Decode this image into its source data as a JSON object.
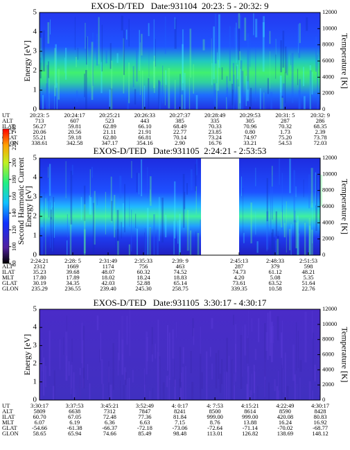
{
  "chart_data": [
    {
      "type": "spectrogram",
      "title": "EXOS-D/TED   Date:931104  20:23: 5 - 20:32: 9",
      "ylabel": "Energy [eV]",
      "y2label": "Temperature [K]",
      "ylim": [
        0,
        5
      ],
      "yticks": [
        0,
        1,
        2,
        3,
        4,
        5
      ],
      "y2lim": [
        0,
        12000
      ],
      "y2ticks": [
        0,
        2000,
        4000,
        6000,
        8000,
        10000,
        12000
      ],
      "row_label": "UT",
      "categories": [
        "20:23: 5",
        "20:24:17",
        "20:25:21",
        "20:26:33",
        "20:27:37",
        "20:28:49",
        "20:29:53",
        "20:31: 5",
        "20:32: 9"
      ],
      "ephemeris": [
        {
          "name": "ALT",
          "values": [
            "713",
            "607",
            "523",
            "443",
            "385",
            "335",
            "305",
            "287",
            "286"
          ]
        },
        {
          "name": "ILAT",
          "values": [
            "56.27",
            "59.81",
            "62.89",
            "66.10",
            "68.49",
            "70.33",
            "70.96",
            "70.32",
            "68.35"
          ]
        },
        {
          "name": "MLT",
          "values": [
            "20.06",
            "20.56",
            "21.11",
            "21.91",
            "22.77",
            "23.85",
            "0.80",
            "1.73",
            "2.39"
          ]
        },
        {
          "name": "GLAT",
          "values": [
            "55.21",
            "59.18",
            "62.80",
            "66.81",
            "70.14",
            "73.24",
            "74.97",
            "75.20",
            "73.78"
          ]
        },
        {
          "name": "GLON",
          "values": [
            "338.61",
            "342.58",
            "347.17",
            "354.16",
            "2.90",
            "16.76",
            "33.21",
            "54.53",
            "72.03"
          ]
        }
      ]
    },
    {
      "type": "spectrogram",
      "title": "EXOS-D/TED   Date:931105  2:24:21 - 2:53:53",
      "ylabel": "Energy [eV]",
      "y2label": "Temperature [K]",
      "ylim": [
        0,
        5
      ],
      "yticks": [
        0,
        1,
        2,
        3,
        4,
        5
      ],
      "y2lim": [
        0,
        12000
      ],
      "y2ticks": [
        0,
        2000,
        4000,
        6000,
        8000,
        10000,
        12000
      ],
      "row_label": "UT",
      "categories": [
        "2:24:21",
        "2:28: 5",
        "2:31:49",
        "2:35:33",
        "2:39: 9",
        "2:45:13",
        "2:48:33",
        "2:51:53"
      ],
      "ephemeris": [
        {
          "name": "ALT",
          "values": [
            "2312",
            "1669",
            "1174",
            "756",
            "463",
            "287",
            "379",
            "598"
          ]
        },
        {
          "name": "ILAT",
          "values": [
            "35.23",
            "39.68",
            "48.07",
            "60.32",
            "74.52",
            "74.73",
            "61.12",
            "48.21"
          ]
        },
        {
          "name": "MLT",
          "values": [
            "17.80",
            "17.89",
            "18.02",
            "18.24",
            "18.83",
            "4.20",
            "5.08",
            "5.35"
          ]
        },
        {
          "name": "GLAT",
          "values": [
            "30.19",
            "34.35",
            "42.03",
            "52.88",
            "65.14",
            "73.61",
            "63.52",
            "51.64"
          ]
        },
        {
          "name": "GLON",
          "values": [
            "235.29",
            "236.55",
            "239.40",
            "245.30",
            "258.75",
            "339.35",
            "10.58",
            "22.76"
          ]
        }
      ]
    },
    {
      "type": "spectrogram",
      "title": "EXOS-D/TED   Date:931105  3:30:17 - 4:30:17",
      "ylabel": "Energy [eV]",
      "y2label": "Temperature [K]",
      "ylim": [
        0,
        5
      ],
      "yticks": [
        0,
        1,
        2,
        3,
        4,
        5
      ],
      "y2lim": [
        0,
        12000
      ],
      "y2ticks": [
        0,
        2000,
        4000,
        6000,
        8000,
        10000,
        12000
      ],
      "row_label": "UT",
      "categories": [
        "3:30:17",
        "3:37:53",
        "3:45:21",
        "3:52:49",
        "4: 0:17",
        "4: 7:53",
        "4:15:21",
        "4:22:49",
        "4:30:17"
      ],
      "ephemeris": [
        {
          "name": "ALT",
          "values": [
            "5809",
            "6638",
            "7312",
            "7847",
            "8241",
            "8500",
            "8614",
            "8590",
            "8428"
          ]
        },
        {
          "name": "ILAT",
          "values": [
            "60.70",
            "67.05",
            "72.48",
            "77.36",
            "81.84",
            "999.00",
            "999.00",
            "420.08",
            "80.83"
          ]
        },
        {
          "name": "MLT",
          "values": [
            "6.07",
            "6.19",
            "6.36",
            "6.63",
            "7.15",
            "8.76",
            "13.88",
            "16.24",
            "16.92"
          ]
        },
        {
          "name": "GLAT",
          "values": [
            "-54.66",
            "-61.38",
            "-66.37",
            "-72.18",
            "-73.06",
            "-72.64",
            "-71.14",
            "-70.02",
            "-68.77"
          ]
        },
        {
          "name": "GLON",
          "values": [
            "58.65",
            "65.94",
            "74.66",
            "85.49",
            "98.48",
            "113.01",
            "126.82",
            "138.69",
            "148.12"
          ]
        }
      ]
    },
    {
      "type": "colorbar",
      "label": "Second Harmonic Current",
      "ylim": [
        80,
        240
      ],
      "yticks": [
        80,
        100,
        120,
        140,
        160,
        180,
        200,
        220,
        240
      ]
    }
  ]
}
